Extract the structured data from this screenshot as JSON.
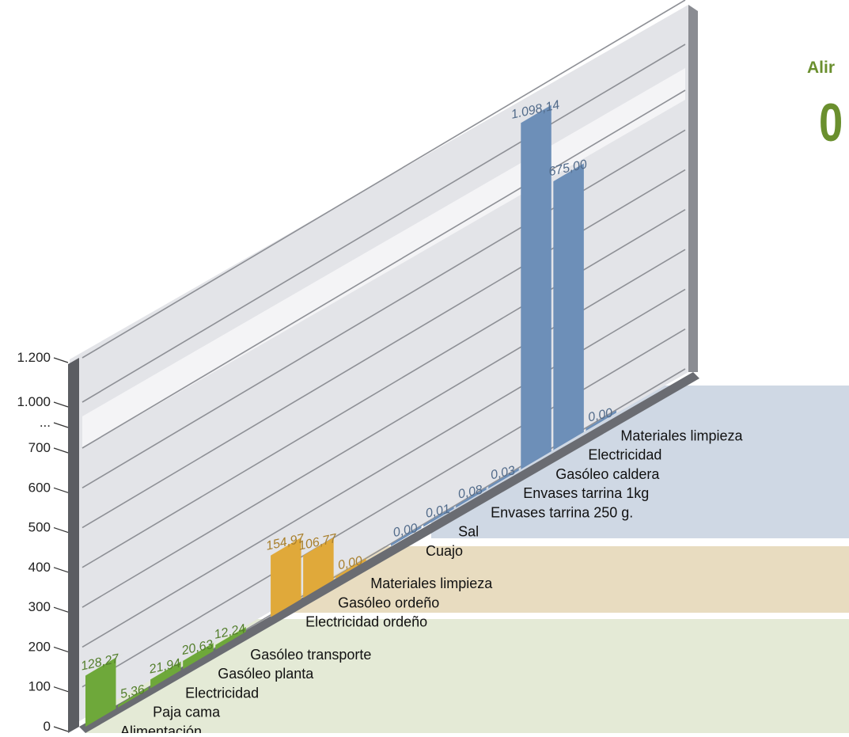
{
  "corner_text": {
    "title_fragment": "Alir",
    "digit_fragment": "0"
  },
  "chart_data": {
    "type": "bar",
    "title": "",
    "xlabel": "",
    "ylabel": "",
    "ylim": [
      0,
      1200
    ],
    "axis_break": "between 700 and 1.000",
    "y_ticks": [
      "0",
      "100",
      "200",
      "300",
      "400",
      "500",
      "600",
      "700",
      "...",
      "1.000",
      "1.200"
    ],
    "grid": true,
    "groups": [
      {
        "color": "#6ea83a",
        "bars": [
          {
            "category": "Alimentación",
            "value": 128.27,
            "label": "128,27"
          },
          {
            "category": "Paja cama",
            "value": 5.36,
            "label": "5,36"
          },
          {
            "category": "Electricidad",
            "value": 21.94,
            "label": "21,94"
          },
          {
            "category": "Gasóleo planta",
            "value": 20.63,
            "label": "20,63"
          },
          {
            "category": "Gasóleo transporte",
            "value": 12.24,
            "label": "12,24"
          }
        ]
      },
      {
        "color": "#e0a93a",
        "bars": [
          {
            "category": "Electricidad ordeño",
            "value": 154.97,
            "label": "154,97"
          },
          {
            "category": "Gasóleo ordeño",
            "value": 106.77,
            "label": "106,77"
          },
          {
            "category": "Materiales limpieza",
            "value": 0.0,
            "label": "0,00"
          }
        ]
      },
      {
        "color": "#6d8fb8",
        "bars": [
          {
            "category": "Cuajo",
            "value": 0.0,
            "label": "0,00"
          },
          {
            "category": "Sal",
            "value": 0.01,
            "label": "0,01"
          },
          {
            "category": "Envases tarrina 250 g.",
            "value": 0.08,
            "label": "0,08"
          },
          {
            "category": "Envases tarrina 1kg",
            "value": 0.03,
            "label": "0,03"
          },
          {
            "category": "Gasóleo caldera",
            "value": 1098.14,
            "label": "1.098,14"
          },
          {
            "category": "Electricidad",
            "value": 675.0,
            "label": "675,00"
          },
          {
            "category": "Materiales limpieza",
            "value": 0.0,
            "label": "0,00"
          }
        ]
      }
    ]
  }
}
